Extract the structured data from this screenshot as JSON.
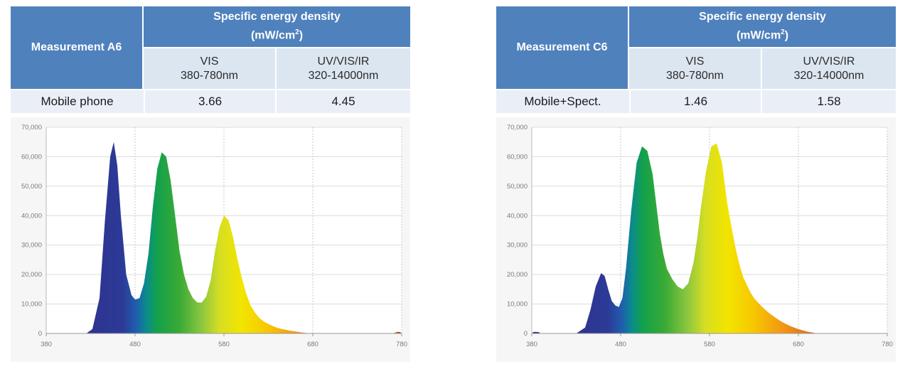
{
  "panels": [
    {
      "measurement": "Measurement A6",
      "header": "Specific energy density",
      "unit_base": "(mW/cm",
      "unit_exp": "2",
      "unit_end": ")",
      "vis_name": "VIS",
      "vis_range": "380-780nm",
      "uv_name": "UV/VIS/IR",
      "uv_range": "320-14000nm",
      "row_label": "Mobile phone",
      "vis_value": "3.66",
      "uv_value": "4.45"
    },
    {
      "measurement": "Measurement C6",
      "header": "Specific energy density",
      "unit_base": "(mW/cm",
      "unit_exp": "2",
      "unit_end": ")",
      "vis_name": "VIS",
      "vis_range": "380-780nm",
      "uv_name": "UV/VIS/IR",
      "uv_range": "320-14000nm",
      "row_label": "Mobile+Spect.",
      "vis_value": "1.46",
      "uv_value": "1.58"
    }
  ],
  "chart_data": [
    {
      "type": "area",
      "x_ticks": [
        380,
        480,
        580,
        680,
        780
      ],
      "y_ticks": [
        0,
        10000,
        20000,
        30000,
        40000,
        50000,
        60000,
        70000
      ],
      "x_tick_labels": [
        "380",
        "480",
        "580",
        "680",
        "780"
      ],
      "y_tick_labels": [
        "0",
        "10,000",
        "20,000",
        "30,000",
        "40,000",
        "50,000",
        "60,000",
        "70,000"
      ],
      "xlim": [
        380,
        780
      ],
      "ylim": [
        0,
        70000
      ],
      "grid": true,
      "series": [
        {
          "x": [
            380,
            410,
            425,
            432,
            440,
            446,
            452,
            456,
            460,
            464,
            470,
            476,
            480,
            485,
            490,
            495,
            500,
            505,
            510,
            515,
            520,
            525,
            530,
            535,
            540,
            545,
            550,
            555,
            560,
            565,
            570,
            575,
            580,
            585,
            590,
            595,
            600,
            605,
            610,
            615,
            620,
            625,
            630,
            635,
            640,
            645,
            650,
            655,
            660,
            665,
            670,
            675,
            680,
            685,
            690,
            695,
            700,
            710,
            740,
            770,
            775,
            778,
            780
          ],
          "y": [
            0,
            0,
            0,
            1500,
            12000,
            38000,
            60000,
            65000,
            57000,
            40000,
            20000,
            13000,
            11500,
            12000,
            17000,
            27000,
            43000,
            56000,
            61500,
            60000,
            52000,
            40000,
            28000,
            20000,
            15000,
            12000,
            10500,
            10500,
            12500,
            18000,
            28000,
            36000,
            40000,
            38500,
            33000,
            25500,
            19000,
            13500,
            9500,
            7000,
            5200,
            4000,
            3200,
            2500,
            1900,
            1500,
            1200,
            900,
            700,
            450,
            250,
            100,
            50,
            0,
            0,
            0,
            0,
            0,
            0,
            0,
            500,
            500,
            0
          ]
        }
      ]
    },
    {
      "type": "area",
      "x_ticks": [
        380,
        480,
        580,
        680,
        780
      ],
      "y_ticks": [
        0,
        10000,
        20000,
        30000,
        40000,
        50000,
        60000,
        70000
      ],
      "x_tick_labels": [
        "380",
        "480",
        "580",
        "680",
        "780"
      ],
      "y_tick_labels": [
        "0",
        "10,000",
        "20,000",
        "30,000",
        "40,000",
        "50,000",
        "60,000",
        "70,000"
      ],
      "xlim": [
        380,
        780
      ],
      "ylim": [
        0,
        70000
      ],
      "grid": true,
      "series": [
        {
          "x": [
            380,
            382,
            385,
            388,
            390,
            410,
            430,
            440,
            446,
            452,
            458,
            462,
            466,
            470,
            474,
            478,
            482,
            486,
            492,
            498,
            504,
            510,
            516,
            520,
            524,
            528,
            532,
            538,
            544,
            550,
            556,
            562,
            566,
            570,
            576,
            582,
            588,
            594,
            600,
            606,
            610,
            614,
            618,
            622,
            626,
            630,
            636,
            642,
            648,
            654,
            660,
            666,
            672,
            678,
            684,
            690,
            696,
            700,
            706,
            712,
            720,
            740,
            760,
            780
          ],
          "y": [
            0,
            500,
            500,
            400,
            0,
            0,
            0,
            2000,
            8000,
            16000,
            20500,
            19500,
            15000,
            11000,
            9500,
            9000,
            12000,
            22000,
            42000,
            58000,
            63500,
            62000,
            54000,
            44000,
            34000,
            27000,
            22000,
            18500,
            16000,
            15000,
            17000,
            24000,
            32000,
            42000,
            55000,
            63500,
            64500,
            58000,
            44000,
            34000,
            28000,
            23000,
            19000,
            16500,
            14000,
            12000,
            10000,
            8200,
            6700,
            5400,
            4200,
            3200,
            2400,
            1700,
            1100,
            600,
            300,
            100,
            0,
            0,
            0,
            0,
            0,
            0
          ]
        }
      ]
    }
  ]
}
